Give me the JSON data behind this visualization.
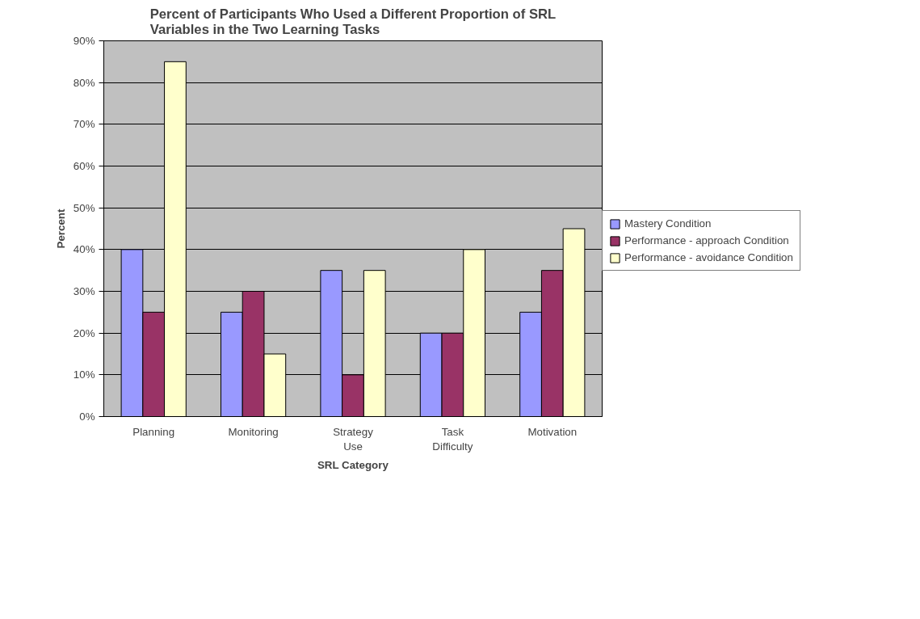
{
  "chart_data": {
    "type": "bar",
    "title": "Percent of Participants Who Used a Different Proportion of SRL\nVariables in the Two Learning Tasks",
    "xlabel": "SRL Category",
    "ylabel": "Percent",
    "categories": [
      "Planning",
      "Monitoring",
      "Strategy Use",
      "Task Difficulty",
      "Motivation"
    ],
    "series": [
      {
        "name": "Mastery Condition",
        "color": "#9999ff",
        "values": [
          40,
          25,
          35,
          20,
          25
        ]
      },
      {
        "name": "Performance - approach Condition",
        "color": "#993366",
        "values": [
          25,
          30,
          10,
          20,
          35
        ]
      },
      {
        "name": "Performance - avoidance Condition",
        "color": "#ffffcc",
        "values": [
          85,
          15,
          35,
          40,
          45
        ]
      }
    ],
    "ylim": [
      0,
      90
    ],
    "yticks": [
      {
        "value": 0,
        "label": "0%"
      },
      {
        "value": 10,
        "label": "10%"
      },
      {
        "value": 20,
        "label": "20%"
      },
      {
        "value": 30,
        "label": "30%"
      },
      {
        "value": 40,
        "label": "40%"
      },
      {
        "value": 50,
        "label": "50%"
      },
      {
        "value": 60,
        "label": "60%"
      },
      {
        "value": 70,
        "label": "70%"
      },
      {
        "value": 80,
        "label": "80%"
      },
      {
        "value": 90,
        "label": "90%"
      }
    ],
    "grid": "y",
    "legend": "right"
  }
}
